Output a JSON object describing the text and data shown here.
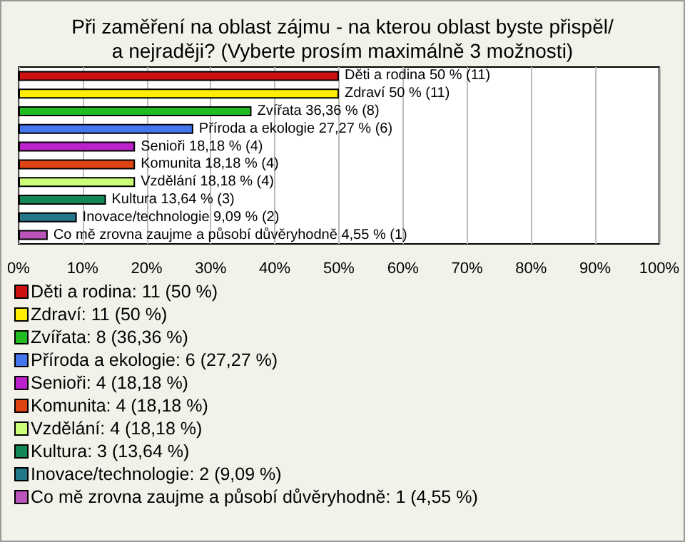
{
  "chart_data": {
    "type": "bar",
    "orientation": "horizontal",
    "stacked": true,
    "title": "Při zaměření na oblast zájmu - na kterou oblast byste přispěl/a nejraději? (Vyberte prosím maximálně 3 možnosti)",
    "categories": [
      null,
      null,
      null,
      null,
      null,
      null,
      null,
      null,
      null,
      null
    ],
    "tick_labels": "x",
    "grid": "x",
    "legend": "bottom",
    "xlim": [
      0,
      100
    ],
    "xticks": [
      {
        "value": 0,
        "label": "0%"
      },
      {
        "value": 10,
        "label": "10%"
      },
      {
        "value": 20,
        "label": "20%"
      },
      {
        "value": 30,
        "label": "30%"
      },
      {
        "value": 40,
        "label": "40%"
      },
      {
        "value": 50,
        "label": "50%"
      },
      {
        "value": 60,
        "label": "60%"
      },
      {
        "value": 70,
        "label": "70%"
      },
      {
        "value": 80,
        "label": "80%"
      },
      {
        "value": 90,
        "label": "90%"
      },
      {
        "value": 100,
        "label": "100%"
      }
    ],
    "series": [
      {
        "name": "Děti a rodina: 11 (50 %)",
        "color": "#cc1111",
        "values": [
          50,
          null,
          null,
          null,
          null,
          null,
          null,
          null,
          null,
          null
        ],
        "value_labels": [
          "Děti a rodina 50 % (11)",
          null,
          null,
          null,
          null,
          null,
          null,
          null,
          null,
          null
        ]
      },
      {
        "name": "Zdraví: 11 (50 %)",
        "color": "#ffee00",
        "values": [
          null,
          50,
          null,
          null,
          null,
          null,
          null,
          null,
          null,
          null
        ],
        "value_labels": [
          null,
          "Zdraví 50 % (11)",
          null,
          null,
          null,
          null,
          null,
          null,
          null,
          null
        ]
      },
      {
        "name": "Zvířata: 8 (36,36 %)",
        "color": "#22bb22",
        "values": [
          null,
          null,
          36.36,
          null,
          null,
          null,
          null,
          null,
          null,
          null
        ],
        "value_labels": [
          null,
          null,
          "Zvířata 36,36 % (8)",
          null,
          null,
          null,
          null,
          null,
          null,
          null
        ]
      },
      {
        "name": "Příroda a ekologie: 6 (27,27 %)",
        "color": "#4477ee",
        "values": [
          null,
          null,
          null,
          27.27,
          null,
          null,
          null,
          null,
          null,
          null
        ],
        "value_labels": [
          null,
          null,
          null,
          "Příroda a ekologie 27,27 % (6)",
          null,
          null,
          null,
          null,
          null,
          null
        ]
      },
      {
        "name": "Senioři: 4 (18,18 %)",
        "color": "#bb22cc",
        "values": [
          null,
          null,
          null,
          null,
          18.18,
          null,
          null,
          null,
          null,
          null
        ],
        "value_labels": [
          null,
          null,
          null,
          null,
          "Senioři 18,18 % (4)",
          null,
          null,
          null,
          null,
          null
        ]
      },
      {
        "name": "Komunita: 4 (18,18 %)",
        "color": "#dd4411",
        "values": [
          null,
          null,
          null,
          null,
          null,
          18.18,
          null,
          null,
          null,
          null
        ],
        "value_labels": [
          null,
          null,
          null,
          null,
          null,
          "Komunita 18,18 % (4)",
          null,
          null,
          null,
          null
        ]
      },
      {
        "name": "Vzdělání: 4 (18,18 %)",
        "color": "#ccff77",
        "values": [
          null,
          null,
          null,
          null,
          null,
          null,
          18.18,
          null,
          null,
          null
        ],
        "value_labels": [
          null,
          null,
          null,
          null,
          null,
          null,
          "Vzdělání 18,18 % (4)",
          null,
          null,
          null
        ]
      },
      {
        "name": "Kultura: 3 (13,64 %)",
        "color": "#118855",
        "values": [
          null,
          null,
          null,
          null,
          null,
          null,
          null,
          13.64,
          null,
          null
        ],
        "value_labels": [
          null,
          null,
          null,
          null,
          null,
          null,
          null,
          "Kultura 13,64 % (3)",
          null,
          null
        ]
      },
      {
        "name": "Inovace/technologie: 2 (9,09 %)",
        "color": "#227788",
        "values": [
          null,
          null,
          null,
          null,
          null,
          null,
          null,
          null,
          9.09,
          null
        ],
        "value_labels": [
          null,
          null,
          null,
          null,
          null,
          null,
          null,
          null,
          "Inovace/technologie 9,09 % (2)",
          null
        ]
      },
      {
        "name": "Co mě zrovna zaujme a působí důvěryhodně: 1 (4,55 %)",
        "color": "#bb55bb",
        "values": [
          null,
          null,
          null,
          null,
          null,
          null,
          null,
          null,
          null,
          4.55
        ],
        "value_labels": [
          null,
          null,
          null,
          null,
          null,
          null,
          null,
          null,
          null,
          "Co mě zrovna zaujme a působí důvěryhodně 4,55 % (1)"
        ]
      }
    ]
  }
}
